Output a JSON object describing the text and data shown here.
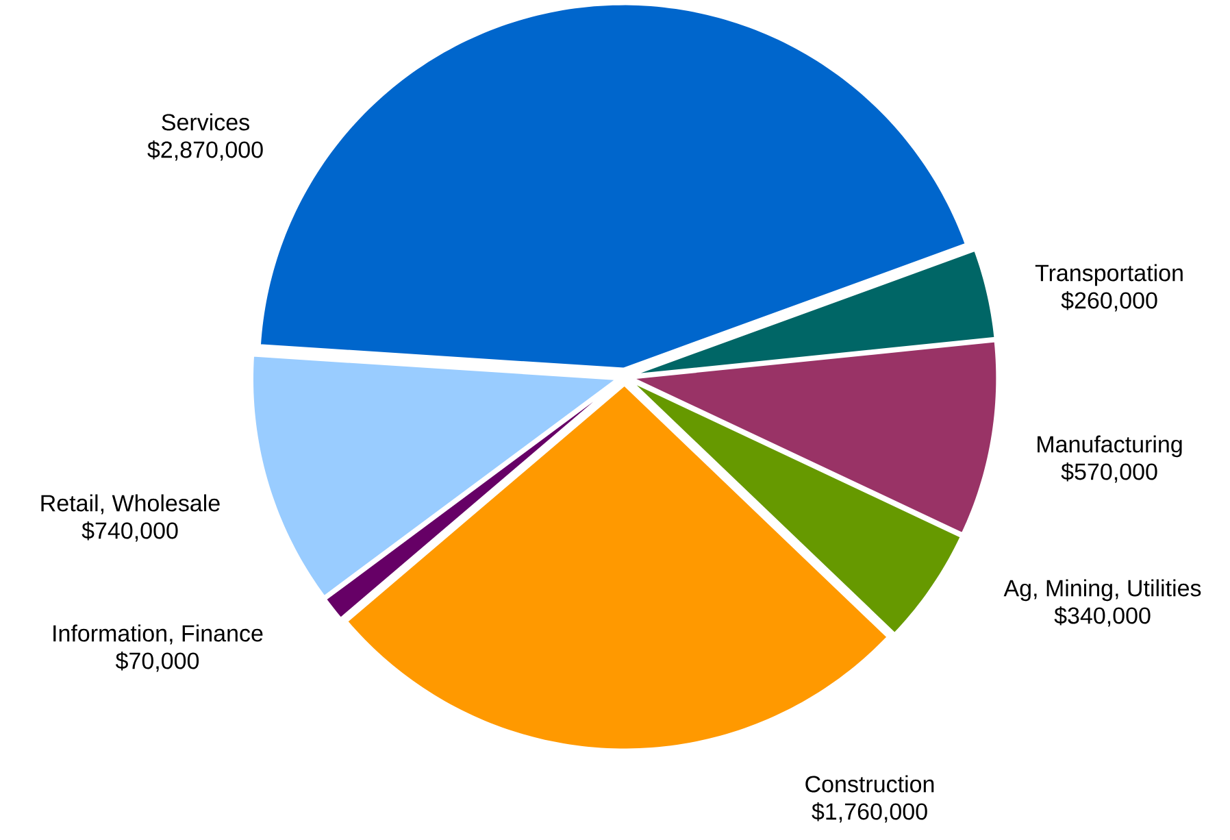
{
  "chart_data": {
    "type": "pie",
    "categories": [
      "Services",
      "Transportation",
      "Manufacturing",
      "Ag, Mining, Utilities",
      "Construction",
      "Information, Finance",
      "Retail, Wholesale"
    ],
    "values": [
      2870000,
      260000,
      570000,
      340000,
      1760000,
      70000,
      740000
    ],
    "colors": [
      "#0066cc",
      "#006666",
      "#993366",
      "#669900",
      "#ff9900",
      "#660066",
      "#99ccff"
    ],
    "value_labels": [
      "$2,870,000",
      "$260,000",
      "$570,000",
      "$340,000",
      "$1,760,000",
      "$70,000",
      "$740,000"
    ]
  }
}
